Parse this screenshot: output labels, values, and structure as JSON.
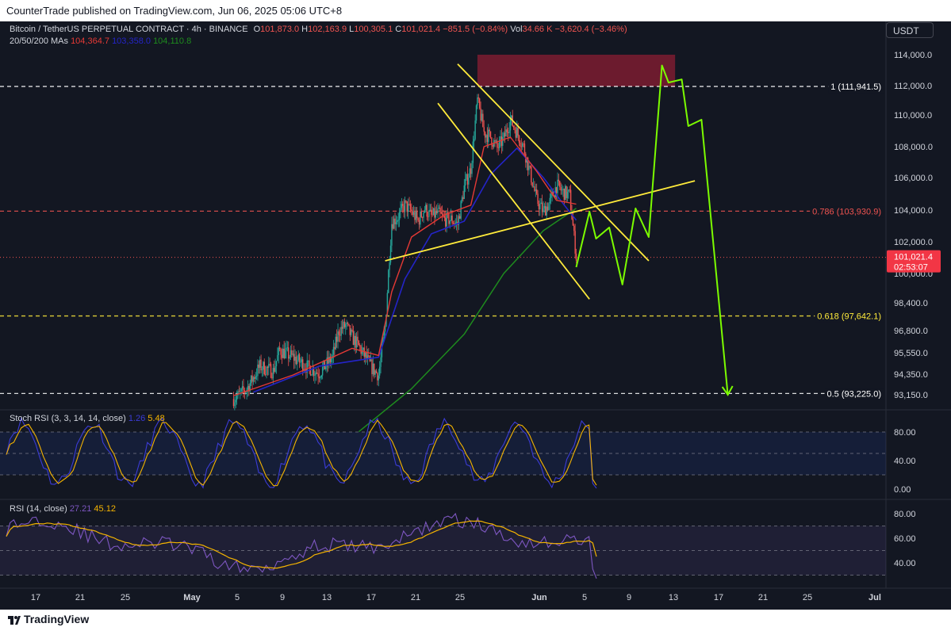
{
  "header": {
    "published": "CounterTrade published on TradingView.com, Jun 06, 2025 05:06 UTC+8"
  },
  "footer": {
    "brand": "TradingView"
  },
  "currency_button": "USDT",
  "legend": {
    "symbol": "Bitcoin / TetherUS PERPETUAL CONTRACT · 4h · BINANCE",
    "o_label": "O",
    "o": "101,873.0",
    "h_label": "H",
    "h": "102,163.9",
    "l_label": "L",
    "l": "100,305.1",
    "c_label": "C",
    "c": "101,021.4",
    "change": "−851.5 (−0.84%)",
    "vol_label": "Vol",
    "vol": "34.66 K",
    "vol_change": "−3,620.4 (−3.46%)",
    "ma_label": "20/50/200 MAs",
    "ma20": "104,364.7",
    "ma50": "103,358.0",
    "ma200": "104,110.8"
  },
  "stoch_legend": {
    "label": "Stoch RSI (3, 3, 14, 14, close)",
    "k": "1.26",
    "d": "5.48"
  },
  "rsi_legend": {
    "label": "RSI (14, close)",
    "rsi": "27.21",
    "ma": "45.12"
  },
  "colors": {
    "bg": "#131722",
    "up": "#26a69a",
    "down": "#ef5350",
    "ma20": "#e53935",
    "ma50": "#2424c8",
    "ma200": "#1e8c1e",
    "pattern": "#ffeb3b",
    "projection": "#7cfc00",
    "stoch_k": "#3b3bd6",
    "stoch_d": "#f5b400",
    "rsi": "#7e57c2",
    "rsi_ma": "#f5b400",
    "supply_zone": "#8b1e33"
  },
  "chart_data": {
    "type": "candlestick",
    "symbol": "BTCUSDT.P",
    "timeframe": "4h",
    "y_ticks": [
      "114,000.0",
      "112,000.0",
      "110,000.0",
      "108,000.0",
      "106,000.0",
      "104,000.0",
      "102,000.0",
      "100,000.0",
      "98,400.0",
      "96,800.0",
      "95,550.0",
      "94,350.0",
      "93,150.0"
    ],
    "x_ticks": [
      "17",
      "21",
      "25",
      "May",
      "5",
      "9",
      "13",
      "17",
      "21",
      "25",
      "Jun",
      "5",
      "9",
      "13",
      "17",
      "21",
      "25",
      "Jul"
    ],
    "fib_levels": [
      {
        "label": "1 (111,941.5)",
        "price": 111941.5
      },
      {
        "label": "0.786 (103,930.9)",
        "price": 103930.9
      },
      {
        "label": "0.618 (97,642.1)",
        "price": 97642.1
      },
      {
        "label": "0.5 (93,225.0)",
        "price": 93225.0
      }
    ],
    "last_price": {
      "price": "101,021.4",
      "countdown": "02:53:07"
    },
    "supply_zone": {
      "from_date": "May 22",
      "to_date": "Jun 21",
      "low": 111941.5,
      "high": 114000
    },
    "close_path": [
      [
        "Apr 15",
        92900
      ],
      [
        "Apr 17",
        93500
      ],
      [
        "Apr 19",
        94800
      ],
      [
        "Apr 21",
        94500
      ],
      [
        "Apr 22",
        95700
      ],
      [
        "Apr 24",
        95300
      ],
      [
        "Apr 26",
        94800
      ],
      [
        "Apr 28",
        94400
      ],
      [
        "Apr 30",
        95300
      ],
      [
        "May 1",
        96800
      ],
      [
        "May 2",
        97100
      ],
      [
        "May 3",
        96400
      ],
      [
        "May 4",
        95900
      ],
      [
        "May 6",
        94700
      ],
      [
        "May 7",
        94300
      ],
      [
        "May 8",
        97000
      ],
      [
        "May 9",
        103200
      ],
      [
        "May 10",
        103600
      ],
      [
        "May 11",
        104300
      ],
      [
        "May 12",
        103900
      ],
      [
        "May 13",
        103300
      ],
      [
        "May 14",
        104100
      ],
      [
        "May 15",
        103600
      ],
      [
        "May 16",
        103800
      ],
      [
        "May 17",
        103400
      ],
      [
        "May 18",
        103400
      ],
      [
        "May 19",
        103100
      ],
      [
        "May 20",
        105400
      ],
      [
        "May 21",
        106600
      ],
      [
        "May 22",
        111000
      ],
      [
        "May 23",
        108900
      ],
      [
        "May 24",
        108600
      ],
      [
        "May 25",
        107900
      ],
      [
        "May 26",
        108500
      ],
      [
        "May 27",
        109700
      ],
      [
        "May 28",
        108900
      ],
      [
        "May 29",
        108000
      ],
      [
        "May 30",
        106300
      ],
      [
        "May 31",
        104600
      ],
      [
        "Jun 1",
        103900
      ],
      [
        "Jun 2",
        104500
      ],
      [
        "Jun 3",
        105500
      ],
      [
        "Jun 4",
        105100
      ],
      [
        "Jun 5",
        104900
      ],
      [
        "Jun 6",
        101021.4
      ]
    ],
    "ma20": [
      [
        "Apr 15",
        93100
      ],
      [
        "Apr 24",
        94300
      ],
      [
        "May 3",
        95800
      ],
      [
        "May 7",
        95400
      ],
      [
        "May 9",
        99000
      ],
      [
        "May 12",
        102300
      ],
      [
        "May 17",
        103700
      ],
      [
        "May 21",
        104300
      ],
      [
        "May 23",
        108000
      ],
      [
        "May 27",
        108600
      ],
      [
        "May 31",
        106400
      ],
      [
        "Jun 3",
        104600
      ],
      [
        "Jun 6",
        104364.7
      ]
    ],
    "ma50": [
      [
        "Apr 18",
        93300
      ],
      [
        "Apr 28",
        94800
      ],
      [
        "May 7",
        95300
      ],
      [
        "May 11",
        99700
      ],
      [
        "May 15",
        102500
      ],
      [
        "May 20",
        103300
      ],
      [
        "May 24",
        106200
      ],
      [
        "May 28",
        107900
      ],
      [
        "Jun 1",
        106000
      ],
      [
        "Jun 4",
        104400
      ],
      [
        "Jun 6",
        103358.0
      ]
    ],
    "ma200": [
      [
        "May 4",
        91000
      ],
      [
        "May 12",
        93500
      ],
      [
        "May 20",
        96600
      ],
      [
        "May 26",
        100000
      ],
      [
        "Jun 1",
        102700
      ],
      [
        "Jun 6",
        104110.8
      ]
    ],
    "projection": [
      [
        "Jun 6",
        100400
      ],
      [
        "Jun 8",
        103900
      ],
      [
        "Jun 9",
        102200
      ],
      [
        "Jun 11",
        102900
      ],
      [
        "Jun 13",
        99400
      ],
      [
        "Jun 15",
        104100
      ],
      [
        "Jun 17",
        102300
      ],
      [
        "Jun 19",
        113300
      ],
      [
        "Jun 20",
        112200
      ],
      [
        "Jun 22",
        112400
      ],
      [
        "Jun 23",
        109300
      ],
      [
        "Jun 25",
        109700
      ],
      [
        "Jun 29",
        93150
      ]
    ],
    "pattern_lines": [
      {
        "name": "upper",
        "from": [
          "May 19",
          113400
        ],
        "to": [
          "Jun 17",
          100800
        ]
      },
      {
        "name": "lower",
        "from": [
          "May 16",
          110800
        ],
        "to": [
          "Jun 8",
          98600
        ]
      },
      {
        "name": "rising",
        "from": [
          "May 8",
          100800
        ],
        "to": [
          "Jun 24",
          105800
        ]
      }
    ],
    "stoch_rsi": {
      "y_ticks": [
        "80.00",
        "40.00",
        "0.00"
      ],
      "k": 1.26,
      "d": 5.48,
      "bands": [
        80,
        20
      ]
    },
    "rsi": {
      "y_ticks": [
        "80.00",
        "60.00",
        "40.00"
      ],
      "value": 27.21,
      "ma": 45.12,
      "bands": [
        70,
        30
      ]
    }
  }
}
